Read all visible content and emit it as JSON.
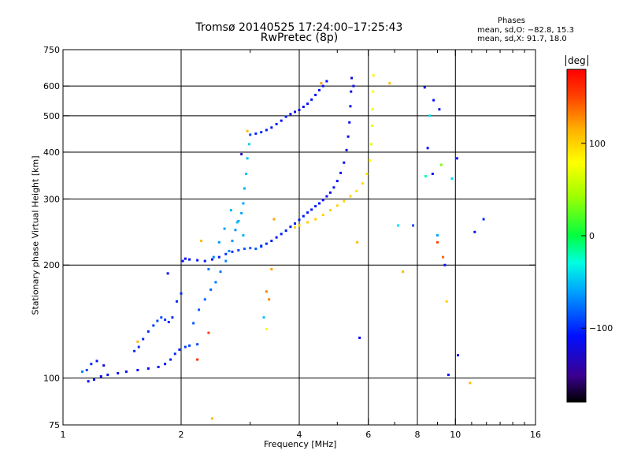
{
  "title_line1": "Tromsø 20140525 17:24:00–17:25:43",
  "title_line2": "RwPretec (8p)",
  "phases": {
    "heading": "Phases",
    "line_o": "mean, sd,O: −82.8, 15.3",
    "line_x": "mean, sd,X:  91.7, 18.0"
  },
  "colorbar": {
    "unit": "deg",
    "range": [
      -180,
      180
    ],
    "ticks": [
      {
        "value": 100,
        "label": "100"
      },
      {
        "value": 0,
        "label": "0"
      },
      {
        "value": -100,
        "label": "−100"
      }
    ]
  },
  "chart_data": {
    "type": "scatter",
    "title": "Tromsø 20140525 17:24:00–17:25:43",
    "subtitle": "RwPretec (8p)",
    "xlabel": "Frequency [MHz]",
    "ylabel": "Stationary phase Virtual Height [km]",
    "xscale": "log",
    "yscale": "log",
    "xlim": [
      1,
      16
    ],
    "ylim": [
      75,
      750
    ],
    "x_ticks": [
      {
        "value": 1,
        "label": "1"
      },
      {
        "value": 2,
        "label": "2"
      },
      {
        "value": 4,
        "label": "4"
      },
      {
        "value": 6,
        "label": "6"
      },
      {
        "value": 8,
        "label": "8"
      },
      {
        "value": 10,
        "label": "10"
      },
      {
        "value": 16,
        "label": "16"
      }
    ],
    "x_minor": [
      3,
      5,
      7,
      9,
      11,
      12,
      13,
      14,
      15
    ],
    "y_ticks": [
      {
        "value": 75,
        "label": "75"
      },
      {
        "value": 100,
        "label": "100"
      },
      {
        "value": 200,
        "label": "200"
      },
      {
        "value": 300,
        "label": "300"
      },
      {
        "value": 400,
        "label": "400"
      },
      {
        "value": 500,
        "label": "500"
      },
      {
        "value": 600,
        "label": "600"
      },
      {
        "value": 750,
        "label": "750"
      }
    ],
    "grid_x": [
      2,
      4,
      6,
      8,
      10
    ],
    "grid_y": [
      100,
      200,
      300,
      400,
      500,
      600
    ],
    "grid": true,
    "color_encoding": "phase [deg]",
    "series": [
      {
        "points": [
          [
            1.16,
            98,
            -110
          ],
          [
            1.2,
            99,
            -110
          ],
          [
            1.25,
            101,
            -110
          ],
          [
            1.3,
            102,
            -115
          ],
          [
            1.38,
            103,
            -110
          ],
          [
            1.45,
            104,
            -110
          ],
          [
            1.55,
            105,
            -112
          ],
          [
            1.65,
            106,
            -110
          ],
          [
            1.75,
            107,
            -110
          ],
          [
            1.82,
            109,
            -108
          ],
          [
            1.88,
            112,
            -105
          ],
          [
            1.93,
            116,
            -100
          ],
          [
            1.98,
            119,
            -100
          ],
          [
            2.05,
            121,
            -95
          ],
          [
            2.1,
            122,
            -90
          ],
          [
            2.2,
            123,
            -90
          ],
          [
            1.12,
            104,
            -70
          ],
          [
            1.15,
            105,
            -90
          ],
          [
            1.18,
            109,
            -100
          ],
          [
            1.22,
            111,
            -110
          ],
          [
            1.27,
            108,
            -120
          ]
        ]
      },
      {
        "points": [
          [
            1.52,
            118,
            -100
          ],
          [
            1.56,
            121,
            -100
          ],
          [
            1.6,
            127,
            -100
          ],
          [
            1.65,
            133,
            -100
          ],
          [
            1.7,
            138,
            -95
          ],
          [
            1.74,
            142,
            -90
          ],
          [
            1.78,
            145,
            -90
          ],
          [
            1.82,
            143,
            -95
          ],
          [
            1.86,
            141,
            -100
          ],
          [
            1.9,
            145,
            -100
          ],
          [
            1.95,
            160,
            -100
          ],
          [
            2.0,
            168,
            -100
          ],
          [
            1.85,
            190,
            -105
          ]
        ]
      },
      {
        "points": [
          [
            2.02,
            205,
            -105
          ],
          [
            2.05,
            208,
            -110
          ],
          [
            2.1,
            207,
            -110
          ],
          [
            2.2,
            206,
            -110
          ],
          [
            2.3,
            205,
            -110
          ],
          [
            2.4,
            207,
            -105
          ],
          [
            2.5,
            210,
            -105
          ],
          [
            2.6,
            214,
            -100
          ],
          [
            2.7,
            217,
            -95
          ],
          [
            2.8,
            219,
            -90
          ],
          [
            2.9,
            221,
            -85
          ],
          [
            3.0,
            222,
            -85
          ],
          [
            3.1,
            221,
            -85
          ],
          [
            3.2,
            224,
            -85
          ]
        ]
      },
      {
        "points": [
          [
            2.15,
            140,
            -85
          ],
          [
            2.22,
            152,
            -85
          ],
          [
            2.3,
            162,
            -80
          ],
          [
            2.38,
            172,
            -80
          ],
          [
            2.45,
            180,
            -75
          ],
          [
            2.52,
            192,
            -75
          ],
          [
            2.6,
            205,
            -70
          ],
          [
            2.65,
            218,
            -70
          ],
          [
            2.7,
            232,
            -65
          ],
          [
            2.75,
            248,
            -65
          ],
          [
            2.8,
            262,
            -60
          ],
          [
            2.85,
            275,
            -60
          ],
          [
            2.88,
            292,
            -60
          ],
          [
            2.9,
            320,
            -55
          ],
          [
            2.93,
            350,
            -50
          ],
          [
            2.95,
            385,
            -50
          ],
          [
            2.98,
            420,
            -45
          ],
          [
            2.88,
            240,
            -55
          ],
          [
            2.78,
            260,
            -50
          ],
          [
            2.68,
            280,
            -55
          ],
          [
            2.58,
            250,
            -60
          ],
          [
            2.5,
            230,
            -65
          ],
          [
            2.42,
            210,
            -70
          ],
          [
            2.35,
            195,
            -75
          ]
        ]
      },
      {
        "points": [
          [
            3.0,
            445,
            -90
          ],
          [
            3.1,
            448,
            -100
          ],
          [
            3.2,
            452,
            -100
          ],
          [
            3.3,
            458,
            -105
          ],
          [
            3.4,
            465,
            -105
          ],
          [
            3.5,
            475,
            -105
          ],
          [
            3.6,
            485,
            -110
          ],
          [
            3.7,
            497,
            -110
          ],
          [
            3.8,
            505,
            -110
          ],
          [
            3.9,
            512,
            -110
          ],
          [
            4.0,
            518,
            -110
          ],
          [
            4.1,
            528,
            -110
          ],
          [
            4.2,
            538,
            -110
          ],
          [
            4.3,
            552,
            -110
          ],
          [
            4.4,
            568,
            -110
          ],
          [
            4.5,
            585,
            -110
          ],
          [
            4.6,
            600,
            -110
          ],
          [
            4.7,
            618,
            -110
          ]
        ]
      },
      {
        "points": [
          [
            3.2,
            225,
            -100
          ],
          [
            3.3,
            228,
            -100
          ],
          [
            3.4,
            232,
            -105
          ],
          [
            3.5,
            237,
            -105
          ],
          [
            3.6,
            242,
            -105
          ],
          [
            3.7,
            247,
            -105
          ],
          [
            3.8,
            253,
            -105
          ],
          [
            3.9,
            258,
            -105
          ],
          [
            4.0,
            264,
            -105
          ],
          [
            4.1,
            270,
            -105
          ],
          [
            4.2,
            276,
            -105
          ],
          [
            4.3,
            281,
            -105
          ],
          [
            4.4,
            287,
            -105
          ],
          [
            4.5,
            292,
            -105
          ],
          [
            4.6,
            298,
            -110
          ],
          [
            4.7,
            305,
            -110
          ],
          [
            4.8,
            312,
            -110
          ],
          [
            4.9,
            322,
            -110
          ],
          [
            5.0,
            335,
            -110
          ],
          [
            5.1,
            352,
            -110
          ],
          [
            5.2,
            375,
            -110
          ],
          [
            5.28,
            405,
            -110
          ],
          [
            5.33,
            440,
            -115
          ],
          [
            5.37,
            480,
            -115
          ],
          [
            5.4,
            530,
            -115
          ],
          [
            5.42,
            580,
            -120
          ],
          [
            5.44,
            630,
            -120
          ],
          [
            5.5,
            600,
            -115
          ]
        ]
      },
      {
        "points": [
          [
            3.9,
            252,
            100
          ],
          [
            4.0,
            255,
            100
          ],
          [
            4.2,
            260,
            100
          ],
          [
            4.4,
            265,
            100
          ],
          [
            4.6,
            272,
            100
          ],
          [
            4.8,
            280,
            100
          ],
          [
            5.0,
            288,
            100
          ],
          [
            5.2,
            296,
            100
          ],
          [
            5.4,
            305,
            100
          ],
          [
            5.6,
            315,
            95
          ],
          [
            5.8,
            330,
            95
          ],
          [
            5.95,
            350,
            90
          ],
          [
            6.05,
            380,
            80
          ],
          [
            6.1,
            420,
            70
          ],
          [
            6.13,
            470,
            70
          ],
          [
            6.15,
            520,
            75
          ],
          [
            6.17,
            580,
            80
          ],
          [
            6.18,
            640,
            85
          ]
        ]
      },
      {
        "points": [
          [
            1.55,
            125,
            110
          ],
          [
            2.25,
            232,
            110
          ],
          [
            2.95,
            455,
            110
          ],
          [
            2.85,
            395,
            -130
          ],
          [
            3.45,
            265,
            120
          ],
          [
            3.4,
            195,
            120
          ],
          [
            3.3,
            170,
            130
          ],
          [
            3.35,
            162,
            130
          ],
          [
            3.25,
            145,
            -50
          ],
          [
            3.3,
            135,
            80
          ],
          [
            2.2,
            112,
            160
          ],
          [
            2.35,
            132,
            150
          ],
          [
            2.4,
            78,
            110
          ],
          [
            4.55,
            610,
            120
          ],
          [
            5.62,
            230,
            110
          ],
          [
            5.7,
            128,
            -110
          ],
          [
            6.8,
            610,
            110
          ],
          [
            7.15,
            255,
            -40
          ],
          [
            7.35,
            192,
            110
          ],
          [
            7.8,
            255,
            -90
          ],
          [
            8.35,
            595,
            -110
          ],
          [
            8.5,
            410,
            -110
          ],
          [
            8.6,
            500,
            -40
          ],
          [
            8.75,
            350,
            -110
          ],
          [
            8.8,
            550,
            -110
          ],
          [
            9.0,
            240,
            -60
          ],
          [
            9.1,
            520,
            -110
          ],
          [
            9.2,
            370,
            30
          ],
          [
            9.3,
            210,
            140
          ],
          [
            9.4,
            200,
            -110
          ],
          [
            9.5,
            160,
            100
          ],
          [
            9.6,
            102,
            -110
          ],
          [
            9.8,
            340,
            -40
          ],
          [
            10.1,
            385,
            -110
          ],
          [
            10.15,
            115,
            -110
          ],
          [
            10.9,
            97,
            110
          ],
          [
            11.2,
            245,
            -110
          ],
          [
            11.8,
            265,
            -100
          ],
          [
            8.4,
            345,
            -20
          ],
          [
            9.0,
            230,
            150
          ]
        ]
      }
    ]
  }
}
